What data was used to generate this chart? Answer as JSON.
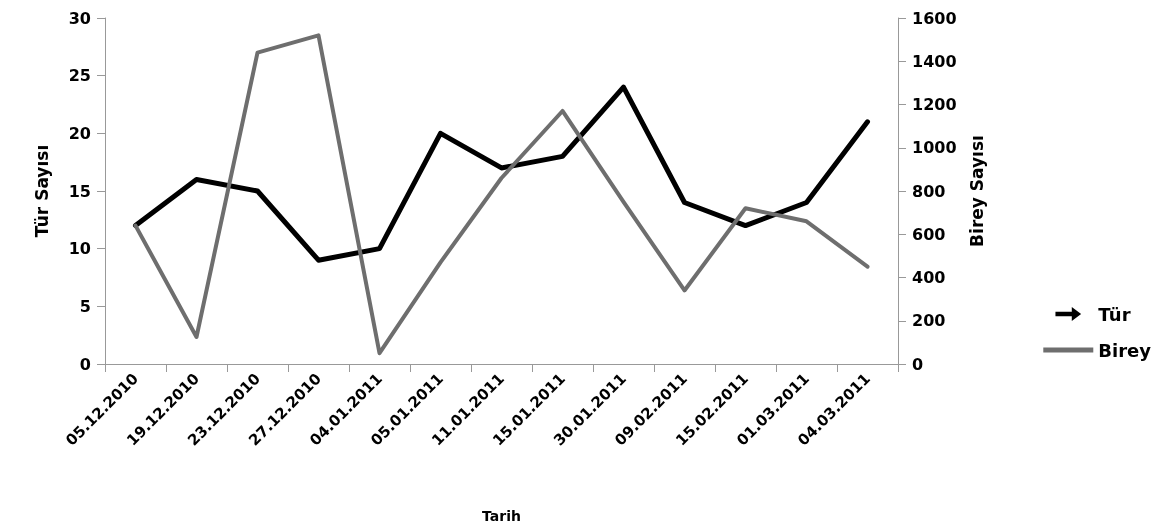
{
  "chart_data": {
    "type": "line",
    "xlabel": "Tarih",
    "ylabel": "Tür Sayısı",
    "y2label": "Birey Sayısı",
    "categories": [
      "05.12.2010",
      "19.12.2010",
      "23.12.2010",
      "27.12.2010",
      "04.01.2011",
      "05.01.2011",
      "11.01.2011",
      "15.01.2011",
      "30.01.2011",
      "09.02.2011",
      "15.02.2011",
      "01.03.2011",
      "04.03.2011"
    ],
    "series": [
      {
        "name": "Tür",
        "color": "#000000",
        "values": [
          12,
          16,
          15,
          9,
          10,
          20,
          17,
          18,
          24,
          14,
          12,
          14,
          21
        ]
      },
      {
        "name": "Birey",
        "color": "#6e6e6e",
        "axis": "y2",
        "values": [
          640,
          125,
          1440,
          1520,
          50,
          470,
          860,
          1170,
          750,
          340,
          720,
          660,
          450
        ]
      }
    ],
    "ylim": [
      0,
      30
    ],
    "yticks": [
      0,
      5,
      10,
      15,
      20,
      25,
      30
    ],
    "y2lim": [
      0,
      1600
    ],
    "y2ticks": [
      0,
      200,
      400,
      600,
      800,
      1000,
      1200,
      1400,
      1600
    ],
    "grid": false,
    "legend": "right",
    "marker": "none",
    "line_style": "solid"
  }
}
